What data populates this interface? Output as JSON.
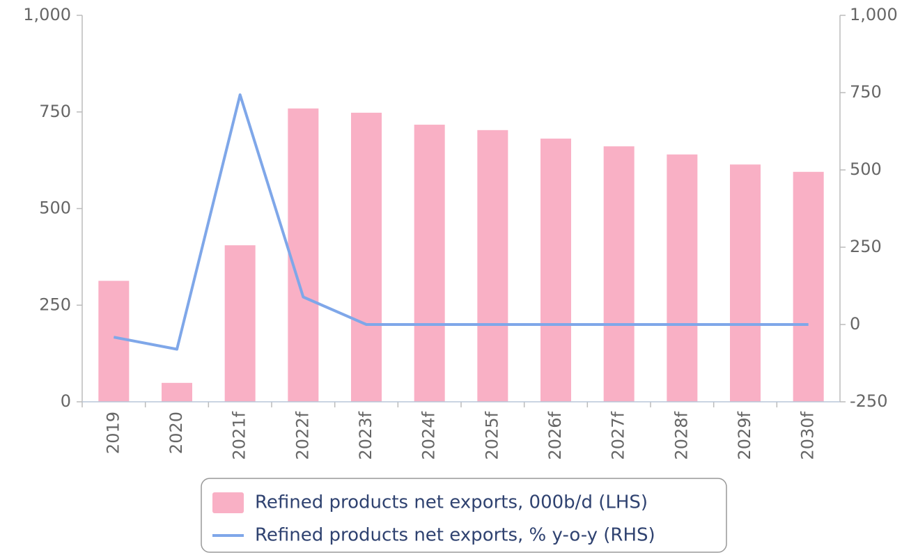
{
  "chart_data": {
    "type": "bar",
    "categories": [
      "2019",
      "2020",
      "2021f",
      "2022f",
      "2023f",
      "2024f",
      "2025f",
      "2026f",
      "2027f",
      "2028f",
      "2029f",
      "2030f"
    ],
    "series": [
      {
        "name": "Refined products net exports, 000b/d (LHS)",
        "type": "bar",
        "color": "#f9b0c5",
        "values": [
          313,
          49,
          405,
          759,
          748,
          717,
          703,
          681,
          661,
          640,
          614,
          595
        ]
      },
      {
        "name": "Refined products net exports, % y-o-y (RHS)",
        "type": "line",
        "axis": "y2",
        "color": "#7fa7e9",
        "values": [
          -41,
          -80,
          743,
          89,
          0,
          0,
          0,
          0,
          0,
          0,
          0,
          0
        ]
      }
    ],
    "ylim": [
      0,
      1000
    ],
    "yticks": [
      0,
      250,
      500,
      750,
      {
        "value": 1000,
        "label": "1,000"
      }
    ],
    "y2lim": [
      -250,
      1000
    ],
    "y2ticks": [
      -250,
      0,
      250,
      500,
      750,
      {
        "value": 1000,
        "label": "1,000"
      }
    ],
    "grid": false
  }
}
